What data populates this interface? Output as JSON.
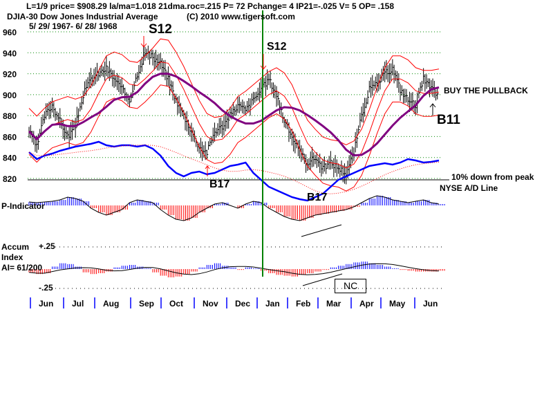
{
  "header": {
    "line1": "L=1/9  price= $908.29  la/ma=1.018 21dma.roc=.215 P=  72 Pchange=  4 IP21=-.025 V= 5 OP= .158",
    "line2": "DJIA-30  Dow Jones Industrial Average",
    "copyright": "(C) 2010 www.tigersoft.com",
    "date_range": "5/ 29/ 1967- 6/ 28/ 1968"
  },
  "colors": {
    "price": "#000000",
    "bands": "#ff0000",
    "ma": "#800080",
    "ad_line": "#0000ff",
    "signal_line": "#008000",
    "up": "#0000ff",
    "down": "#ff0000"
  },
  "annotations": {
    "s12_top": "S12",
    "s12": "S12",
    "b17_a": "B17",
    "b17_b": "B17",
    "b11": "B11",
    "buy_text": "BUY THE PULLBACK",
    "peak_text": "10% down from peak",
    "ad_text": "NYSE A/D Line",
    "nc": "NC"
  },
  "panels": {
    "p_indicator": "P-Indicator",
    "accum1": "Accum",
    "accum2": "Index",
    "accum3": "AI= 61/200",
    "plus": "+.25",
    "minus": "-.25"
  },
  "chart_data": {
    "type": "line",
    "title": "DJIA-30 Dow Jones Industrial Average",
    "ylim": [
      820,
      960
    ],
    "yticks": [
      "960",
      "940",
      "920",
      "900",
      "880",
      "860",
      "840",
      "820"
    ],
    "months": [
      "Jun",
      "Jul",
      "Aug",
      "Sep",
      "Oct",
      "Nov",
      "Dec",
      "Jan",
      "Feb",
      "Mar",
      "Apr",
      "May",
      "Jun"
    ],
    "weekly_close": [
      865,
      850,
      880,
      890,
      875,
      860,
      870,
      900,
      915,
      920,
      925,
      915,
      905,
      895,
      920,
      940,
      935,
      930,
      915,
      895,
      880,
      865,
      850,
      845,
      865,
      870,
      880,
      890,
      885,
      895,
      905,
      915,
      900,
      875,
      860,
      845,
      835,
      840,
      830,
      835,
      830,
      825,
      845,
      880,
      905,
      910,
      920,
      925,
      905,
      895,
      890,
      915,
      905,
      900
    ],
    "ad_line_relative": [
      80,
      70,
      75,
      78,
      82,
      85,
      88,
      90,
      92,
      95,
      90,
      88,
      90,
      90,
      88,
      90,
      85,
      75,
      60,
      50,
      45,
      50,
      52,
      48,
      50,
      55,
      60,
      62,
      65,
      50,
      40,
      30,
      25,
      20,
      15,
      12,
      10,
      15,
      20,
      30,
      40,
      45,
      50,
      55,
      60,
      62,
      64,
      62,
      65,
      70,
      68,
      65,
      66,
      68
    ],
    "p_indicator": [
      5,
      4,
      5,
      6,
      8,
      12,
      10,
      6,
      -4,
      -10,
      -14,
      -10,
      -6,
      4,
      8,
      6,
      4,
      -6,
      -14,
      -20,
      -22,
      -18,
      -10,
      -4,
      2,
      4,
      0,
      -4,
      2,
      6,
      4,
      -4,
      -10,
      -16,
      -20,
      -22,
      -18,
      -14,
      -12,
      -10,
      -8,
      -6,
      -2,
      4,
      10,
      14,
      12,
      8,
      6,
      4,
      6,
      8,
      4,
      2
    ],
    "accum_index": [
      -0.04,
      -0.06,
      -0.05,
      0.03,
      0.07,
      0.06,
      0.03,
      -0.04,
      -0.06,
      -0.05,
      -0.03,
      0.02,
      0.04,
      0.05,
      0.03,
      0.01,
      -0.04,
      -0.08,
      -0.1,
      -0.09,
      -0.06,
      -0.03,
      0.02,
      0.05,
      0.07,
      0.04,
      0.02,
      -0.01,
      0.02,
      0.01,
      -0.02,
      -0.05,
      -0.07,
      -0.08,
      -0.09,
      -0.07,
      -0.05,
      -0.03,
      -0.01,
      0.02,
      0.04,
      0.06,
      0.08,
      0.09,
      0.07,
      0.05,
      0.03,
      0.01,
      -0.01,
      -0.02,
      -0.03,
      -0.03,
      -0.03,
      -0.02
    ],
    "accum_ylim": [
      -0.25,
      0.25
    ],
    "signals": [
      "S12",
      "S12",
      "B17",
      "B17",
      "B11"
    ]
  }
}
